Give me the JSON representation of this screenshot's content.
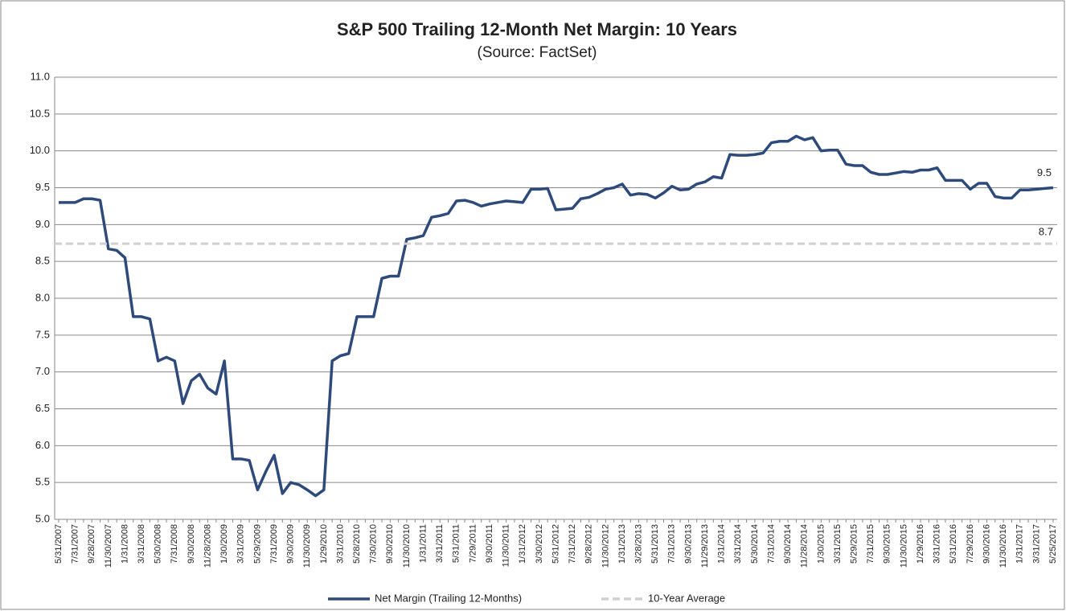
{
  "chart_data": {
    "type": "line",
    "title": "S&P 500 Trailing 12-Month Net Margin: 10 Years",
    "subtitle": "(Source: FactSet)",
    "categories": [
      "5/31/2007",
      null,
      "7/31/2007",
      null,
      "9/28/2007",
      null,
      "11/30/2007",
      null,
      "1/31/2008",
      null,
      "3/31/2008",
      null,
      "5/30/2008",
      null,
      "7/31/2008",
      null,
      "9/30/2008",
      null,
      "11/28/2008",
      null,
      "1/30/2009",
      null,
      "3/31/2009",
      null,
      "5/29/2009",
      null,
      "7/31/2009",
      null,
      "9/30/2009",
      null,
      "11/30/2009",
      null,
      "1/29/2010",
      null,
      "3/31/2010",
      null,
      "5/28/2010",
      null,
      "7/30/2010",
      null,
      "9/30/2010",
      null,
      "11/30/2010",
      null,
      "1/31/2011",
      null,
      "3/31/2011",
      null,
      "5/31/2011",
      null,
      "7/29/2011",
      null,
      "9/30/2011",
      null,
      "11/30/2011",
      null,
      "1/31/2012",
      null,
      "3/30/2012",
      null,
      "5/31/2012",
      null,
      "7/31/2012",
      null,
      "9/28/2012",
      null,
      "11/30/2012",
      null,
      "1/31/2013",
      null,
      "3/28/2013",
      null,
      "5/31/2013",
      null,
      "7/31/2013",
      null,
      "9/30/2013",
      null,
      "11/29/2013",
      null,
      "1/31/2014",
      null,
      "3/31/2014",
      null,
      "5/30/2014",
      null,
      "7/31/2014",
      null,
      "9/30/2014",
      null,
      "11/28/2014",
      null,
      "1/30/2015",
      null,
      "3/31/2015",
      null,
      "5/29/2015",
      null,
      "7/31/2015",
      null,
      "9/30/2015",
      null,
      "11/30/2015",
      null,
      "1/29/2016",
      null,
      "3/31/2016",
      null,
      "5/31/2016",
      null,
      "7/29/2016",
      null,
      "9/30/2016",
      null,
      "11/30/2016",
      null,
      "1/31/2017",
      null,
      "3/31/2017",
      null,
      "5/25/2017"
    ],
    "series": [
      {
        "name": "Net Margin (Trailing 12-Months)",
        "color": "#2e4a7a",
        "end_label": "9.5",
        "values": [
          9.3,
          9.3,
          9.3,
          9.35,
          9.35,
          9.33,
          8.67,
          8.65,
          8.55,
          7.75,
          7.75,
          7.72,
          7.15,
          7.2,
          7.15,
          6.57,
          6.88,
          6.97,
          6.78,
          6.7,
          7.15,
          5.82,
          5.82,
          5.8,
          5.4,
          5.65,
          5.87,
          5.35,
          5.5,
          5.47,
          5.4,
          5.32,
          5.4,
          7.15,
          7.22,
          7.25,
          7.75,
          7.75,
          7.75,
          8.27,
          8.3,
          8.3,
          8.8,
          8.82,
          8.85,
          9.1,
          9.12,
          9.15,
          9.32,
          9.33,
          9.3,
          9.25,
          9.28,
          9.3,
          9.32,
          9.31,
          9.3,
          9.48,
          9.48,
          9.49,
          9.2,
          9.21,
          9.22,
          9.35,
          9.37,
          9.42,
          9.48,
          9.5,
          9.55,
          9.4,
          9.42,
          9.41,
          9.36,
          9.43,
          9.52,
          9.47,
          9.48,
          9.55,
          9.58,
          9.65,
          9.63,
          9.95,
          9.94,
          9.94,
          9.95,
          9.97,
          10.11,
          10.13,
          10.13,
          10.2,
          10.15,
          10.18,
          10.0,
          10.01,
          10.01,
          9.82,
          9.8,
          9.8,
          9.71,
          9.68,
          9.68,
          9.7,
          9.72,
          9.71,
          9.74,
          9.74,
          9.77,
          9.6,
          9.6,
          9.6,
          9.48,
          9.56,
          9.56,
          9.38,
          9.36,
          9.36,
          9.47,
          9.47,
          9.48,
          9.49,
          9.5
        ]
      },
      {
        "name": "10-Year Average",
        "color": "#d0d0d0",
        "dashed": true,
        "value": 8.74,
        "value_label": "8.7"
      }
    ],
    "ylim": [
      5,
      11
    ],
    "yticks": [
      {
        "value": 5,
        "label": "5.0"
      },
      5.5,
      {
        "value": 6,
        "label": "6.0"
      },
      6.5,
      {
        "value": 7,
        "label": "7.0"
      },
      7.5,
      {
        "value": 8,
        "label": "8.0"
      },
      8.5,
      {
        "value": 9,
        "label": "9.0"
      },
      9.5,
      {
        "value": 10,
        "label": "10.0"
      },
      10.5,
      {
        "value": 11,
        "label": "11.0"
      }
    ],
    "grid": true,
    "legend": "bottom"
  }
}
